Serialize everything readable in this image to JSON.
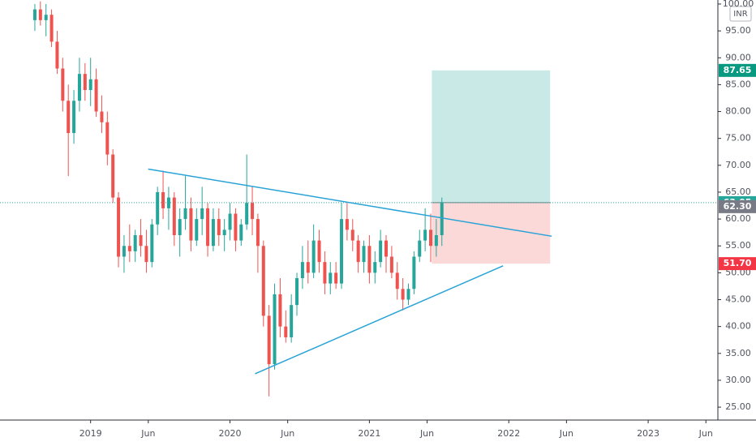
{
  "chart_data": {
    "type": "candlestick",
    "currency": "INR",
    "up_color": "#26a69a",
    "down_color": "#ef5350",
    "x": [
      2018.6,
      2018.64,
      2018.68,
      2018.72,
      2018.76,
      2018.8,
      2018.84,
      2018.88,
      2018.92,
      2018.96,
      2019.0,
      2019.04,
      2019.08,
      2019.12,
      2019.16,
      2019.2,
      2019.24,
      2019.28,
      2019.32,
      2019.36,
      2019.4,
      2019.44,
      2019.48,
      2019.52,
      2019.56,
      2019.6,
      2019.64,
      2019.68,
      2019.72,
      2019.76,
      2019.8,
      2019.84,
      2019.88,
      2019.92,
      2019.96,
      2020.0,
      2020.04,
      2020.08,
      2020.12,
      2020.16,
      2020.2,
      2020.24,
      2020.28,
      2020.32,
      2020.36,
      2020.4,
      2020.44,
      2020.48,
      2020.52,
      2020.56,
      2020.6,
      2020.64,
      2020.68,
      2020.72,
      2020.76,
      2020.8,
      2020.84,
      2020.88,
      2020.92,
      2020.96,
      2021.0,
      2021.04,
      2021.08,
      2021.12,
      2021.16,
      2021.2,
      2021.24,
      2021.28,
      2021.32,
      2021.36,
      2021.4,
      2021.44,
      2021.48,
      2021.52
    ],
    "open": [
      97,
      99,
      97,
      98,
      93,
      88,
      82,
      76,
      82,
      87,
      84,
      86,
      80,
      78,
      72,
      64,
      53,
      55,
      54,
      57,
      55,
      52,
      59,
      65,
      62,
      64,
      57,
      60,
      62,
      56,
      60,
      62,
      55,
      60,
      57,
      58,
      61,
      56,
      59,
      63,
      60,
      55,
      42,
      33,
      46,
      40,
      38,
      44,
      49,
      52,
      50,
      56,
      52,
      48,
      50,
      48,
      60,
      58,
      56,
      52,
      55,
      50,
      52,
      56,
      53,
      50,
      47,
      45,
      47,
      53,
      56,
      58,
      55,
      57
    ],
    "high": [
      100,
      100.5,
      100,
      99,
      95,
      90,
      85,
      84,
      90,
      89,
      90,
      88,
      83,
      80,
      73,
      65,
      57,
      59,
      58,
      60,
      58,
      60,
      66,
      69,
      66,
      65,
      62,
      68,
      64,
      62,
      66,
      63,
      62,
      62,
      60,
      63,
      62,
      60,
      72,
      66,
      61,
      56,
      44,
      48,
      49,
      43,
      46,
      50,
      55,
      56,
      59,
      58,
      54,
      52,
      52,
      63,
      63,
      60,
      57,
      56,
      57,
      54,
      58,
      57,
      55,
      52,
      49,
      48,
      54,
      58,
      62,
      61,
      60,
      64
    ],
    "low": [
      95,
      96,
      94,
      92,
      87,
      80,
      68,
      74,
      80,
      82,
      81,
      79,
      76,
      70,
      63,
      51,
      50,
      52,
      52,
      53,
      50,
      51,
      57,
      60,
      58,
      55,
      53,
      58,
      54,
      55,
      57,
      53,
      54,
      55,
      54,
      56,
      54,
      55,
      58,
      57,
      50,
      40,
      27,
      32,
      38,
      37,
      37,
      42,
      47,
      48,
      49,
      50,
      46,
      46,
      47,
      47,
      56,
      54,
      50,
      50,
      48,
      48,
      51,
      50,
      49,
      45,
      43,
      44,
      46,
      52,
      54,
      52,
      53,
      55
    ],
    "close": [
      99,
      97,
      98,
      93,
      88,
      82,
      76,
      82,
      87,
      84,
      86,
      80,
      78,
      72,
      64,
      53,
      55,
      54,
      57,
      55,
      52,
      59,
      65,
      62,
      64,
      57,
      60,
      62,
      56,
      60,
      62,
      55,
      60,
      57,
      58,
      61,
      56,
      59,
      63,
      60,
      55,
      42,
      33,
      46,
      40,
      38,
      44,
      49,
      52,
      50,
      56,
      52,
      48,
      50,
      48,
      60,
      58,
      56,
      52,
      55,
      50,
      52,
      56,
      53,
      50,
      47,
      45,
      47,
      53,
      56,
      58,
      55,
      57,
      63.05
    ],
    "xlim": [
      2018.35,
      2023.5
    ],
    "xticks": [
      2019,
      {
        "value": 2019.414,
        "label": "Jun"
      },
      2020,
      {
        "value": 2020.414,
        "label": "Jun"
      },
      2021,
      {
        "value": 2021.414,
        "label": "Jun"
      },
      2022,
      {
        "value": 2022.414,
        "label": "Jun"
      },
      2023,
      {
        "value": 2023.414,
        "label": "Jun"
      }
    ],
    "ylim": [
      22.6,
      100.75
    ],
    "yticks": [
      {
        "value": 25,
        "label": "25.00"
      },
      {
        "value": 30,
        "label": "30.00"
      },
      {
        "value": 35,
        "label": "35.00"
      },
      {
        "value": 40,
        "label": "40.00"
      },
      {
        "value": 45,
        "label": "45.00"
      },
      {
        "value": 50,
        "label": "50.00"
      },
      {
        "value": 55,
        "label": "55.00"
      },
      {
        "value": 60,
        "label": "60.00"
      },
      {
        "value": 65,
        "label": "65.00"
      },
      {
        "value": 70,
        "label": "70.00"
      },
      {
        "value": 75,
        "label": "75.00"
      },
      {
        "value": 80,
        "label": "80.00"
      },
      {
        "value": 85,
        "label": "85.00"
      },
      {
        "value": 90,
        "label": "90.00"
      },
      {
        "value": 95,
        "label": "95.00"
      },
      {
        "value": 100,
        "label": "100.00"
      }
    ],
    "price_labels": [
      {
        "value": 87.65,
        "color": "#089981"
      },
      {
        "value": 63.05,
        "color": "#26a69a"
      },
      {
        "value": 62.3,
        "label": "62.30",
        "color": "#787b86"
      },
      {
        "value": 51.7,
        "label": "51.70",
        "color": "#f23645"
      }
    ],
    "position": {
      "x": [
        2021.448,
        2022.297
      ],
      "profit_color": "#b2dfdb",
      "loss_color": "#fbc9c9"
    },
    "trendlines": [
      {
        "x": [
          2019.413,
          2022.308
        ],
        "y": [
          69.3,
          56.8
        ],
        "color": "#29a3d6"
      },
      {
        "x": [
          2020.18,
          2021.959
        ],
        "y": [
          31.2,
          51.3
        ],
        "color": "#29a3d6"
      }
    ]
  }
}
